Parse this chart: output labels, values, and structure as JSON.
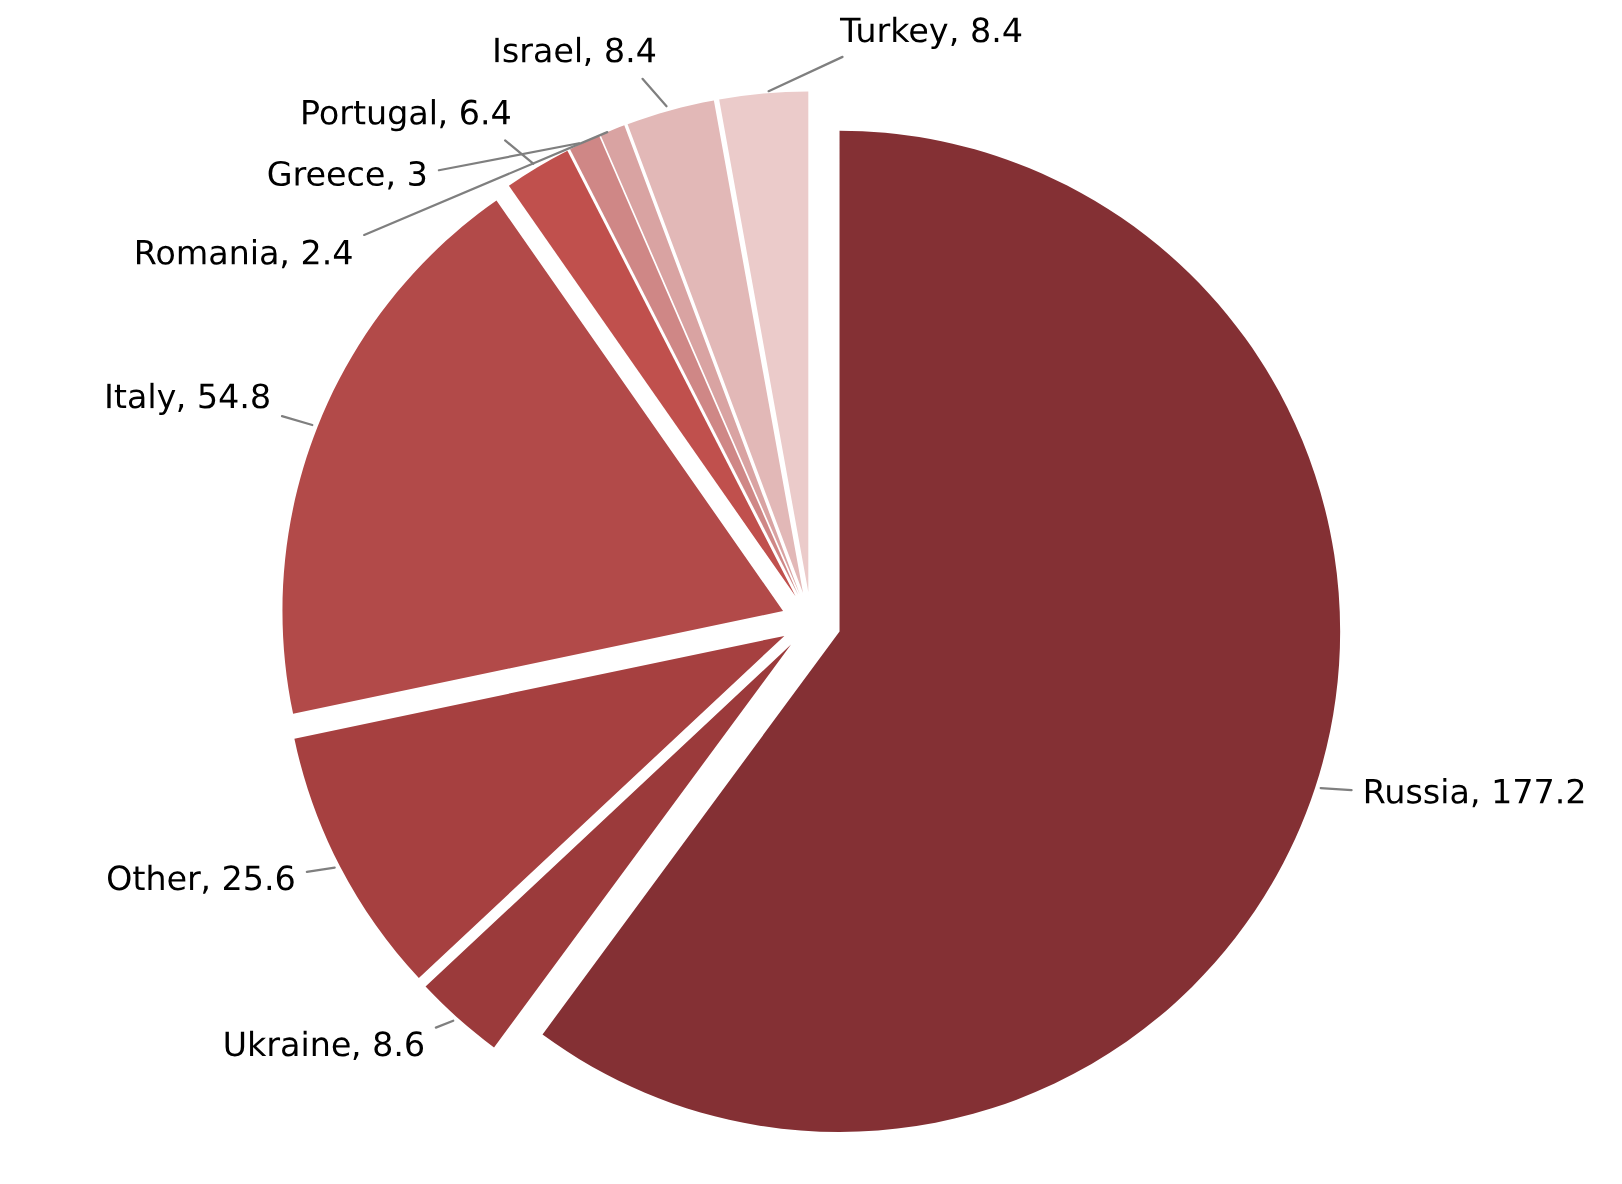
{
  "chart_data": {
    "type": "pie",
    "categories": [
      "Russia",
      "Ukraine",
      "Other",
      "Italy",
      "Portugal",
      "Greece",
      "Romania",
      "Israel",
      "Turkey"
    ],
    "values": [
      177.2,
      8.6,
      25.6,
      54.8,
      6.4,
      3,
      2.4,
      8.4,
      8.4
    ],
    "colors": [
      "#843034",
      "#9b3a3b",
      "#a64040",
      "#b24a49",
      "#c0504d",
      "#cf8786",
      "#d9a3a2",
      "#e2b8b7",
      "#ebcbca"
    ],
    "value_labels": [
      ", 177.2",
      ", 8.6",
      ", 25.6",
      ", 54.8",
      ", 6.4",
      ", 3",
      ", 2.4",
      ", 8.4",
      ", 8.4"
    ]
  }
}
